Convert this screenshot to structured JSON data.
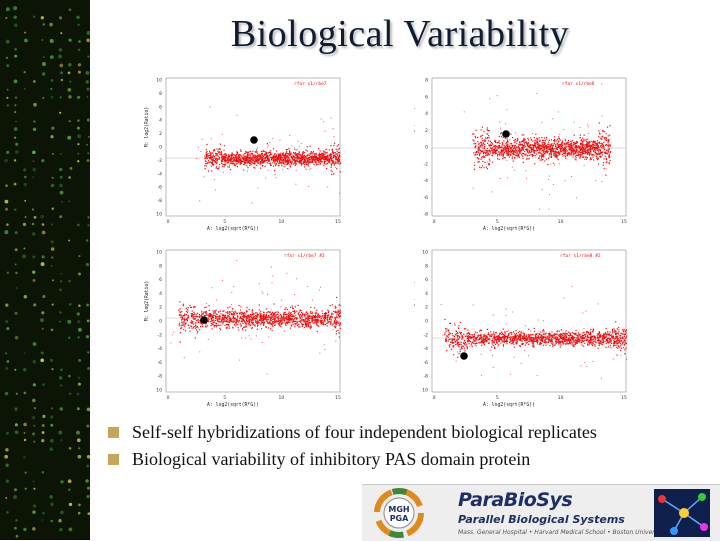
{
  "slide": {
    "title": "Biological Variability",
    "bullets": [
      "Self-self hybridizations of four independent biological replicates",
      "Biological variability of inhibitory PAS domain protein"
    ]
  },
  "plots": [
    {
      "id": "top-left",
      "legend": "rfar s1/rbe7",
      "xlabel": "A: log2(sqrt(R*G))",
      "ylabel": "M: log2(Ratio)",
      "xticks": [
        "0",
        "2.5",
        "5",
        "7.5",
        "10",
        "12.5",
        "15"
      ],
      "yticks": [
        "10",
        "8",
        "6",
        "4",
        "2",
        "0",
        "-2",
        "-4",
        "-6",
        "-8",
        "10"
      ]
    },
    {
      "id": "top-right",
      "legend": "rfar s1/rbe8",
      "xlabel": "A: log2(sqrt(R*G))",
      "ylabel": "M: log2(Ratio)",
      "xticks": [
        "0",
        "2.5",
        "5",
        "7.5",
        "10",
        "12.5",
        "15"
      ],
      "yticks": [
        "8",
        "6",
        "4",
        "2",
        "0",
        "-2",
        "-4",
        "-6",
        "-8"
      ]
    },
    {
      "id": "bottom-left",
      "legend": "rfar s1/rbe7 #2",
      "xlabel": "A: log2(sqrt(R*G))",
      "ylabel": "M: log2(Ratio)",
      "xticks": [
        "0",
        "2.5",
        "5",
        "7.5",
        "10",
        "12.5",
        "15"
      ],
      "yticks": [
        "10",
        "8",
        "6",
        "4",
        "2",
        "0",
        "-2",
        "-4",
        "-6",
        "-8",
        "10"
      ]
    },
    {
      "id": "bottom-right",
      "legend": "rfar s1/rbe8 #2",
      "xlabel": "A: log2(sqrt(R*G))",
      "ylabel": "M: log2(Ratio)",
      "xticks": [
        "0",
        "2.5",
        "5",
        "7.5",
        "10",
        "12.5",
        "15"
      ],
      "yticks": [
        "10",
        "8",
        "6",
        "4",
        "2",
        "0",
        "-2",
        "-4",
        "-6",
        "-8",
        "10"
      ]
    }
  ],
  "logo": {
    "mgh_text": "MGH",
    "pga_text": "PGA",
    "title": "ParaBioSys",
    "subtitle": "Parallel Biological Systems",
    "fine_print": "Mass. General Hospital • Harvard Medical School • Boston University"
  },
  "colors": {
    "points": "#ee1111",
    "highlight": "#000000",
    "title_text": "#0f1c33",
    "sidebar": "#0b1405",
    "bullet": "#c6a55a"
  }
}
